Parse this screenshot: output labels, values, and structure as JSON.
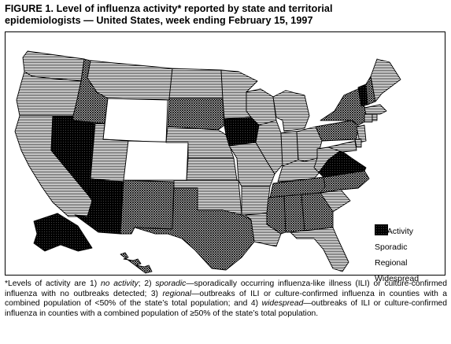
{
  "figure": {
    "title_line1": "FIGURE 1.  Level of influenza activity* reported by state and territorial",
    "title_line2": "epidemiologists — United States, week ending February 15, 1997"
  },
  "legend": {
    "items": [
      {
        "key": "none",
        "label": "No Activity"
      },
      {
        "key": "sporadic",
        "label": "Sporadic"
      },
      {
        "key": "regional",
        "label": "Regional"
      },
      {
        "key": "widespread",
        "label": "Widespread"
      }
    ]
  },
  "states": {
    "WA": "sporadic",
    "OR": "sporadic",
    "CA": "sporadic",
    "ID": "regional",
    "NV": "widespread",
    "MT": "sporadic",
    "WY": "none",
    "UT": "sporadic",
    "CO": "none",
    "AZ": "widespread",
    "NM": "regional",
    "ND": "sporadic",
    "SD": "regional",
    "NE": "sporadic",
    "KS": "sporadic",
    "OK": "sporadic",
    "TX": "regional",
    "MN": "sporadic",
    "IA": "widespread",
    "MO": "sporadic",
    "AR": "sporadic",
    "LA": "sporadic",
    "WI": "sporadic",
    "IL": "sporadic",
    "MI": "sporadic",
    "IN": "sporadic",
    "OH": "sporadic",
    "KY": "sporadic",
    "TN": "regional",
    "MS": "regional",
    "AL": "regional",
    "GA": "regional",
    "FL": "sporadic",
    "SC": "sporadic",
    "NC": "regional",
    "VA": "widespread",
    "WV": "sporadic",
    "PA": "regional",
    "NY": "regional",
    "VT": "widespread",
    "NH": "regional",
    "ME": "sporadic",
    "MA": "sporadic",
    "CT": "sporadic",
    "RI": "sporadic",
    "NJ": "sporadic",
    "DE": "sporadic",
    "MD": "sporadic",
    "AK": "widespread",
    "HI": "regional"
  },
  "footnote": {
    "p1": "*Levels of activity are 1) ",
    "t1": "no activity",
    "p2": "; 2) ",
    "t2": "sporadic",
    "p3": "—sporadically occurring influenza-like illness (ILI) or culture-confirmed influenza with no outbreaks detected; 3) ",
    "t3": "regional",
    "p4": "—outbreaks of ILI or culture-confirmed influenza in counties with a combined population of <50% of the state’s total population; and 4) ",
    "t4": "widespread",
    "p5": "—outbreaks of ILI or culture-confirmed influenza in counties with a combined population of ≥50% of the state’s total population."
  }
}
